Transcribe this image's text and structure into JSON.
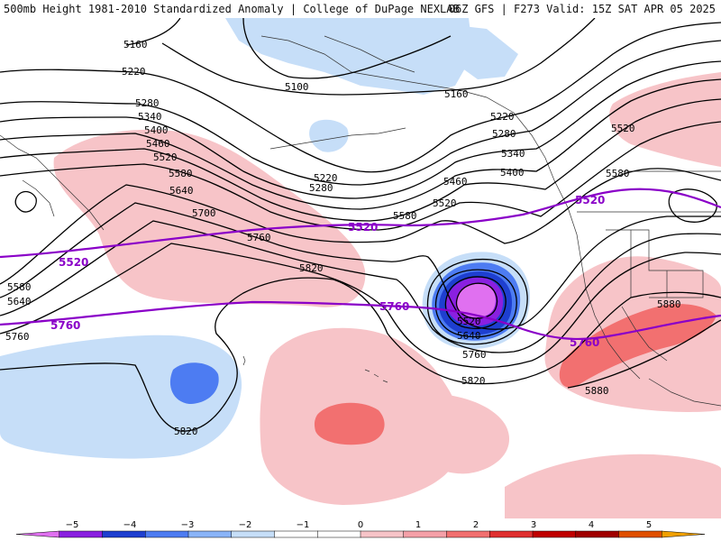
{
  "header": {
    "title_left": "500mb Height 1981-2010 Standardized Anomaly | College of DuPage NEXLAB",
    "title_right": "06Z GFS | F273 Valid: 15Z SAT APR 05 2025"
  },
  "contour_labels": {
    "c5160a": "5160",
    "c5160b": "5160",
    "c5100": "5100",
    "c5220a": "5220",
    "c5220b": "5220",
    "c5220c": "5220",
    "c5280a": "5280",
    "c5280b": "5280",
    "c5280c": "5280",
    "c5340a": "5340",
    "c5340b": "5340",
    "c5400a": "5400",
    "c5400b": "5400",
    "c5460a": "5460",
    "c5460b": "5460",
    "c5520a": "5520",
    "c5520b": "5520",
    "c5520c": "5520",
    "c5580a": "5580",
    "c5580b": "5580",
    "c5580c": "5580",
    "c5640a": "5640",
    "c5640b": "5640",
    "c5640c": "5640",
    "c5700": "5700",
    "c5760a": "5760",
    "c5760b": "5760",
    "c5760c": "5760",
    "c5820a": "5820",
    "c5820b": "5820",
    "c5820c": "5820",
    "c5880a": "5880",
    "c5880b": "5880"
  },
  "climo_labels": {
    "m5520a": "5520",
    "m5520b": "5520",
    "m5520c": "5520",
    "m5760a": "5760",
    "m5760b": "5760",
    "m5760c": "5760"
  },
  "colors": {
    "contour": "#000000",
    "climo_line": "#8a00c8",
    "anom_pos_1": "#f7c4c8",
    "anom_pos_2": "#f27070",
    "anom_neg_1": "#c6def8",
    "anom_neg_2": "#4d7cf2",
    "anom_neg_3": "#1e3fd0",
    "anom_neg_4": "#8a20e0",
    "anom_neg_5": "#e070f0"
  },
  "colorbar": {
    "ticks": [
      "−5",
      "−4",
      "−3",
      "−2",
      "−1",
      "0",
      "1",
      "2",
      "3",
      "4",
      "5"
    ],
    "segments": [
      "#e070f0",
      "#8a20e0",
      "#1e3fd0",
      "#4d7cf2",
      "#8ab4f8",
      "#c6def8",
      "#ffffff",
      "#ffffff",
      "#f7c4c8",
      "#f5a0a8",
      "#f27070",
      "#e03030",
      "#c00000",
      "#a00000",
      "#e05000",
      "#f0a000"
    ]
  }
}
